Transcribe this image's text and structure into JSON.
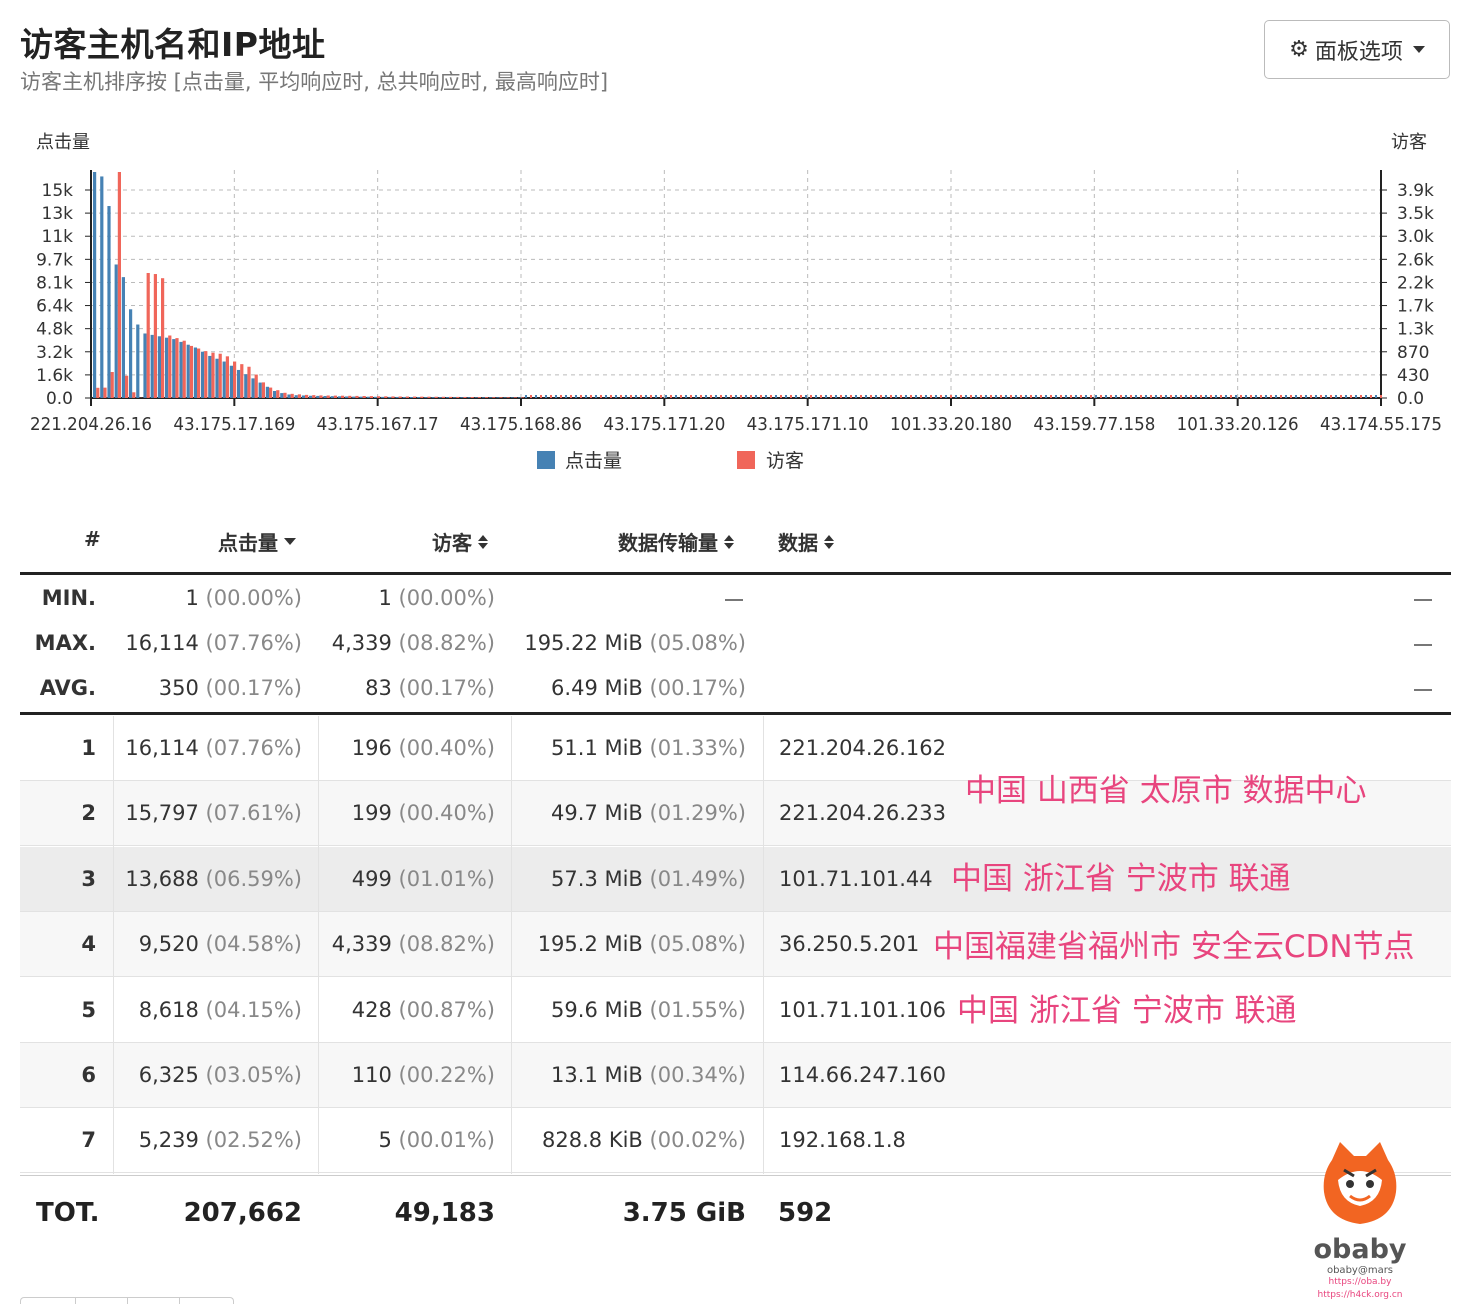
{
  "header": {
    "title": "访客主机名和IP地址",
    "subtitle": "访客主机排序按 [点击量, 平均响应时, 总共响应时, 最高响应时]",
    "panel_button": "面板选项"
  },
  "chart_data": {
    "type": "bar",
    "left_axis_label": "点击量",
    "right_axis_label": "访客",
    "left_ticks": [
      "15k",
      "13k",
      "11k",
      "9.7k",
      "8.1k",
      "6.4k",
      "4.8k",
      "3.2k",
      "1.6k",
      "0.0"
    ],
    "right_ticks": [
      "3.9k",
      "3.5k",
      "3.0k",
      "2.6k",
      "2.2k",
      "1.7k",
      "1.3k",
      "870",
      "430",
      "0.0"
    ],
    "x_ticks": [
      "221.204.26.16",
      "43.175.17.169",
      "43.175.167.17",
      "43.175.168.86",
      "43.175.171.20",
      "43.175.171.10",
      "101.33.20.180",
      "43.159.77.158",
      "101.33.20.126",
      "43.174.55.175"
    ],
    "ylim_left": [
      0,
      16114
    ],
    "ylim_right": [
      0,
      4339
    ],
    "grid": true,
    "legend_position": "bottom",
    "series": [
      {
        "name": "点击量",
        "color": "#4682b4",
        "values": [
          16114,
          15797,
          13688,
          9520,
          8618,
          6325,
          5239,
          4600,
          4500,
          4400,
          4300,
          4200,
          4000,
          3800,
          3600,
          3300,
          3000,
          2800,
          2600,
          2300,
          2000,
          1700,
          1400,
          1100,
          800,
          500,
          350,
          250,
          200,
          180,
          160,
          150,
          140,
          130,
          120,
          110,
          100,
          95,
          90,
          85,
          80,
          78,
          75,
          72,
          70,
          68,
          66,
          64,
          62,
          60,
          58,
          56,
          54,
          52,
          50,
          49,
          48,
          47,
          46,
          45
        ]
      },
      {
        "name": "访客",
        "color": "#f0665a",
        "values": [
          196,
          199,
          499,
          4339,
          428,
          110,
          5,
          2400,
          2380,
          2300,
          1200,
          1150,
          1100,
          1000,
          950,
          900,
          870,
          850,
          800,
          700,
          650,
          600,
          450,
          300,
          200,
          150,
          100,
          80,
          70,
          60,
          55,
          50,
          48,
          46,
          44,
          42,
          40,
          38,
          36,
          34,
          32,
          30,
          29,
          28,
          27,
          26,
          25,
          24,
          23,
          22,
          21,
          20,
          19,
          18,
          17,
          16,
          15,
          14,
          13,
          12
        ]
      }
    ]
  },
  "table": {
    "headers": {
      "index": "#",
      "hits": "点击量",
      "visitors": "访客",
      "bandwidth": "数据传输量",
      "data": "数据"
    },
    "summary": [
      {
        "label": "MIN.",
        "hits": "1",
        "hits_pct": "(00.00%)",
        "visitors": "1",
        "visitors_pct": "(00.00%)",
        "bandwidth": "",
        "bandwidth_pct": ""
      },
      {
        "label": "MAX.",
        "hits": "16,114",
        "hits_pct": "(07.76%)",
        "visitors": "4,339",
        "visitors_pct": "(08.82%)",
        "bandwidth": "195.22 MiB",
        "bandwidth_pct": "(05.08%)"
      },
      {
        "label": "AVG.",
        "hits": "350",
        "hits_pct": "(00.17%)",
        "visitors": "83",
        "visitors_pct": "(00.17%)",
        "bandwidth": "6.49 MiB",
        "bandwidth_pct": "(00.17%)"
      }
    ],
    "rows": [
      {
        "n": "1",
        "hits": "16,114",
        "hits_pct": "(07.76%)",
        "visitors": "196",
        "visitors_pct": "(00.40%)",
        "bandwidth": "51.1 MiB",
        "bandwidth_pct": "(01.33%)",
        "data": "221.204.26.162"
      },
      {
        "n": "2",
        "hits": "15,797",
        "hits_pct": "(07.61%)",
        "visitors": "199",
        "visitors_pct": "(00.40%)",
        "bandwidth": "49.7 MiB",
        "bandwidth_pct": "(01.29%)",
        "data": "221.204.26.233"
      },
      {
        "n": "3",
        "hits": "13,688",
        "hits_pct": "(06.59%)",
        "visitors": "499",
        "visitors_pct": "(01.01%)",
        "bandwidth": "57.3 MiB",
        "bandwidth_pct": "(01.49%)",
        "data": "101.71.101.44"
      },
      {
        "n": "4",
        "hits": "9,520",
        "hits_pct": "(04.58%)",
        "visitors": "4,339",
        "visitors_pct": "(08.82%)",
        "bandwidth": "195.2 MiB",
        "bandwidth_pct": "(05.08%)",
        "data": "36.250.5.201"
      },
      {
        "n": "5",
        "hits": "8,618",
        "hits_pct": "(04.15%)",
        "visitors": "428",
        "visitors_pct": "(00.87%)",
        "bandwidth": "59.6 MiB",
        "bandwidth_pct": "(01.55%)",
        "data": "101.71.101.106"
      },
      {
        "n": "6",
        "hits": "6,325",
        "hits_pct": "(03.05%)",
        "visitors": "110",
        "visitors_pct": "(00.22%)",
        "bandwidth": "13.1 MiB",
        "bandwidth_pct": "(00.34%)",
        "data": "114.66.247.160"
      },
      {
        "n": "7",
        "hits": "5,239",
        "hits_pct": "(02.52%)",
        "visitors": "5",
        "visitors_pct": "(00.01%)",
        "bandwidth": "828.8 KiB",
        "bandwidth_pct": "(00.02%)",
        "data": "192.168.1.8"
      }
    ],
    "total": {
      "label": "TOT.",
      "hits": "207,662",
      "visitors": "49,183",
      "bandwidth": "3.75 GiB",
      "data": "592"
    }
  },
  "annotations": [
    "中国 山西省 太原市 数据中心",
    "中国 浙江省 宁波市 联通",
    "中国福建省福州市 安全云CDN节点",
    "中国 浙江省 宁波市 联通"
  ],
  "watermark": {
    "brand": "obaby",
    "handle": "obaby@mars",
    "url1": "https://oba.by",
    "url2": "https://h4ck.org.cn"
  },
  "icons": {
    "panel": "gear-icon",
    "dropdown": "caret-down-icon",
    "sort": "sort-icon"
  }
}
